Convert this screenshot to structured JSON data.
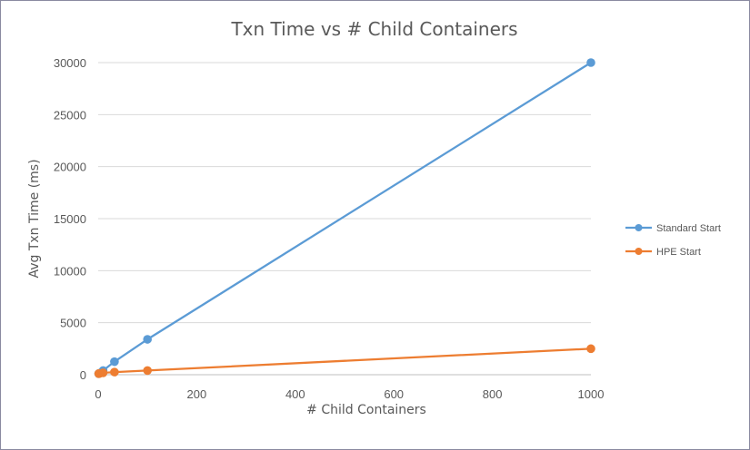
{
  "chart_data": {
    "type": "line",
    "title": "Txn Time vs # Child Containers",
    "xlabel": "# Child Containers",
    "ylabel": "Avg Txn Time (ms)",
    "xlim": [
      0,
      1000
    ],
    "ylim": [
      0,
      30000
    ],
    "xticks": [
      0,
      200,
      400,
      600,
      800,
      1000
    ],
    "yticks": [
      0,
      5000,
      10000,
      15000,
      20000,
      25000,
      30000
    ],
    "grid": true,
    "legend_position": "right",
    "series": [
      {
        "name": "Standard Start",
        "color": "#5b9bd5",
        "x": [
          1,
          3,
          10,
          33,
          100,
          1000
        ],
        "y": [
          100,
          150,
          400,
          1250,
          3400,
          30000
        ]
      },
      {
        "name": "HPE Start",
        "color": "#ed7d31",
        "x": [
          1,
          3,
          10,
          33,
          100,
          1000
        ],
        "y": [
          100,
          120,
          180,
          250,
          400,
          2500
        ]
      }
    ]
  }
}
